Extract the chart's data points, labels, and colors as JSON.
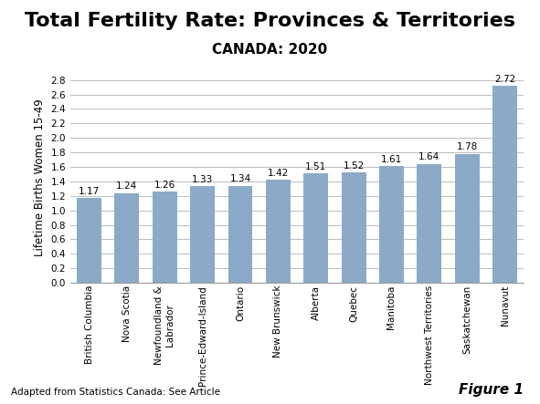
{
  "title": "Total Fertility Rate: Provinces & Territories",
  "subtitle": "CANADA: 2020",
  "ylabel": "Lifetime Births Women 15-49",
  "categories": [
    "British Columbia",
    "Nova Scotia",
    "Newfoundland &\nLabrador",
    "Prince-Edward-Island",
    "Ontario",
    "New Brunswick",
    "Alberta",
    "Quebec",
    "Manitoba",
    "Northwest Territories",
    "Saskatchewan",
    "Nunavut"
  ],
  "values": [
    1.17,
    1.24,
    1.26,
    1.33,
    1.34,
    1.42,
    1.51,
    1.52,
    1.61,
    1.64,
    1.78,
    2.72
  ],
  "bar_color": "#8aaac8",
  "ylim": [
    0.0,
    2.9
  ],
  "yticks": [
    0.0,
    0.2,
    0.4,
    0.6,
    0.8,
    1.0,
    1.2,
    1.4,
    1.6,
    1.8,
    2.0,
    2.2,
    2.4,
    2.6,
    2.8
  ],
  "footnote": "Adapted from Statistics Canada: See Article",
  "figure_label": "Figure 1",
  "title_fontsize": 16,
  "subtitle_fontsize": 11,
  "ylabel_fontsize": 8.5,
  "tick_label_fontsize": 7.5,
  "value_label_fontsize": 7.5,
  "footnote_fontsize": 7.5,
  "figure_label_fontsize": 11,
  "background_color": "#ffffff",
  "grid_color": "#bbbbbb"
}
